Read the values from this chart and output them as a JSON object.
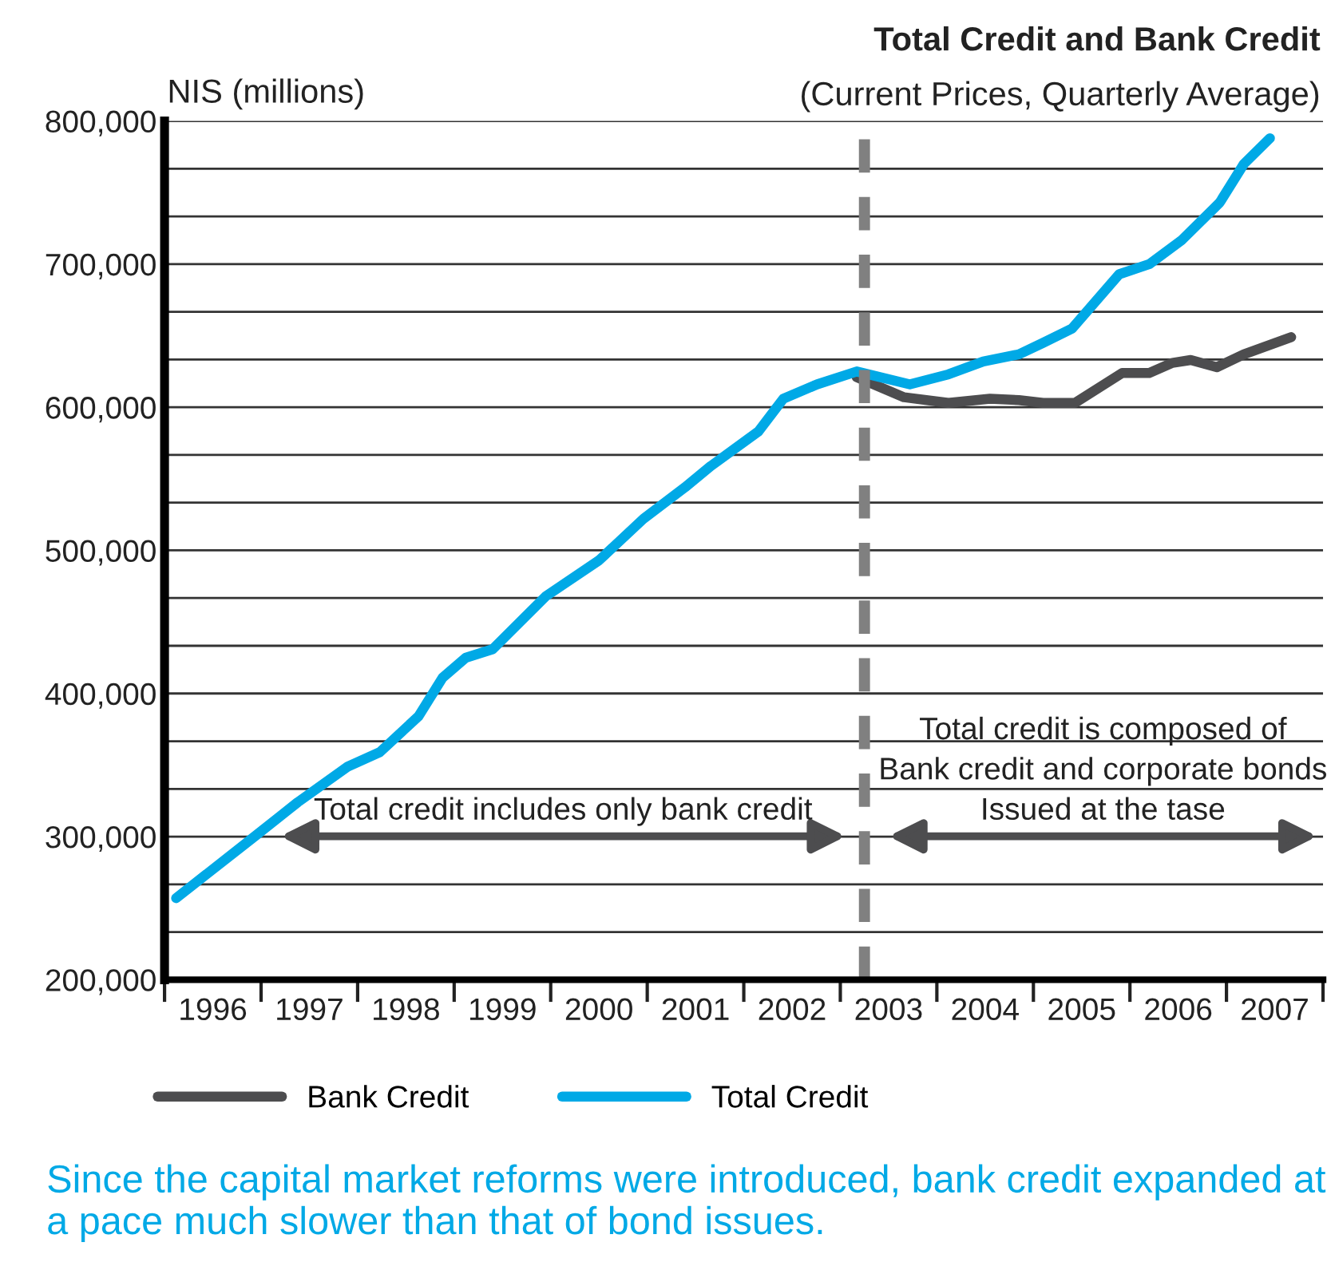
{
  "chart_data": {
    "type": "line",
    "title": "Total Credit and Bank Credit",
    "subtitle": "(Current Prices, Quarterly Average)",
    "ylabel": "NIS (millions)",
    "series": [
      {
        "name": "Bank Credit",
        "color": "#4d4d4f",
        "x": [
          2003.17,
          2003.66,
          2004.12,
          2004.55,
          2004.85,
          2005.1,
          2005.43,
          2005.92,
          2006.2,
          2006.44,
          2006.63,
          2006.9,
          2007.18,
          2007.67
        ],
        "values": [
          621000,
          607000,
          603000,
          606000,
          605000,
          603000,
          603000,
          624000,
          624000,
          631000,
          633000,
          628000,
          637000,
          649000
        ]
      },
      {
        "name": "Total Credit",
        "color": "#00a9e6",
        "x": [
          1996.12,
          1996.95,
          1997.38,
          1997.9,
          1998.23,
          1998.63,
          1998.88,
          1999.12,
          1999.4,
          1999.95,
          2000.5,
          2000.96,
          2001.39,
          2001.66,
          2002.15,
          2002.41,
          2002.76,
          2003.17,
          2003.72,
          2004.12,
          2004.48,
          2004.85,
          2005.1,
          2005.4,
          2005.89,
          2006.2,
          2006.54,
          2006.93,
          2007.18,
          2007.45
        ],
        "values": [
          257000,
          301000,
          324000,
          349000,
          359000,
          384000,
          411000,
          425000,
          431000,
          468000,
          493000,
          522000,
          544000,
          559000,
          583000,
          606000,
          616000,
          625000,
          616000,
          623000,
          632000,
          637000,
          645000,
          655000,
          693000,
          700000,
          717000,
          743000,
          770000,
          788000
        ]
      }
    ],
    "xlim": [
      1996,
      2008
    ],
    "xticks": [
      {
        "value": 1996,
        "label": null
      },
      {
        "value": 1996.5,
        "label": "1996"
      },
      {
        "value": 1997,
        "label": null
      },
      {
        "value": 1997.5,
        "label": "1997"
      },
      {
        "value": 1998,
        "label": null
      },
      {
        "value": 1998.5,
        "label": "1998"
      },
      {
        "value": 1999,
        "label": null
      },
      {
        "value": 1999.5,
        "label": "1999"
      },
      {
        "value": 2000,
        "label": null
      },
      {
        "value": 2000.5,
        "label": "2000"
      },
      {
        "value": 2001,
        "label": null
      },
      {
        "value": 2001.5,
        "label": "2001"
      },
      {
        "value": 2002,
        "label": null
      },
      {
        "value": 2002.5,
        "label": "2002"
      },
      {
        "value": 2003,
        "label": null
      },
      {
        "value": 2003.5,
        "label": "2003"
      },
      {
        "value": 2004,
        "label": null
      },
      {
        "value": 2004.5,
        "label": "2004"
      },
      {
        "value": 2005,
        "label": null
      },
      {
        "value": 2005.5,
        "label": "2005"
      },
      {
        "value": 2006,
        "label": null
      },
      {
        "value": 2006.5,
        "label": "2006"
      },
      {
        "value": 2007,
        "label": null
      },
      {
        "value": 2007.5,
        "label": "2007"
      },
      {
        "value": 2008,
        "label": null
      }
    ],
    "ylim": [
      200000,
      800000
    ],
    "yticks": [
      {
        "value": 200000,
        "label": "200,000"
      },
      {
        "value": 233333,
        "label": null
      },
      {
        "value": 266667,
        "label": null
      },
      {
        "value": 300000,
        "label": "300,000"
      },
      {
        "value": 333333,
        "label": null
      },
      {
        "value": 366667,
        "label": null
      },
      {
        "value": 400000,
        "label": "400,000"
      },
      {
        "value": 433333,
        "label": null
      },
      {
        "value": 466667,
        "label": null
      },
      {
        "value": 500000,
        "label": "500,000"
      },
      {
        "value": 533333,
        "label": null
      },
      {
        "value": 566667,
        "label": null
      },
      {
        "value": 600000,
        "label": "600,000"
      },
      {
        "value": 633333,
        "label": null
      },
      {
        "value": 666667,
        "label": null
      },
      {
        "value": 700000,
        "label": "700,000"
      },
      {
        "value": 733333,
        "label": null
      },
      {
        "value": 766667,
        "label": null
      },
      {
        "value": 800000,
        "label": "800,000"
      }
    ],
    "grid": "y",
    "legend": "bottom",
    "marker": "none",
    "line_style": "solid",
    "ref_lines": [
      {
        "axis": "x",
        "value": 2003.25,
        "color": "#808080",
        "line_style": "dashed"
      }
    ],
    "annotations": [
      "Total credit includes only bank credit",
      "Total credit is composed of\nBank credit and corporate bonds\nIssued at the tase",
      "Since the capital market reforms were introduced, bank credit expanded at a pace much slower than that of bond issues."
    ]
  }
}
